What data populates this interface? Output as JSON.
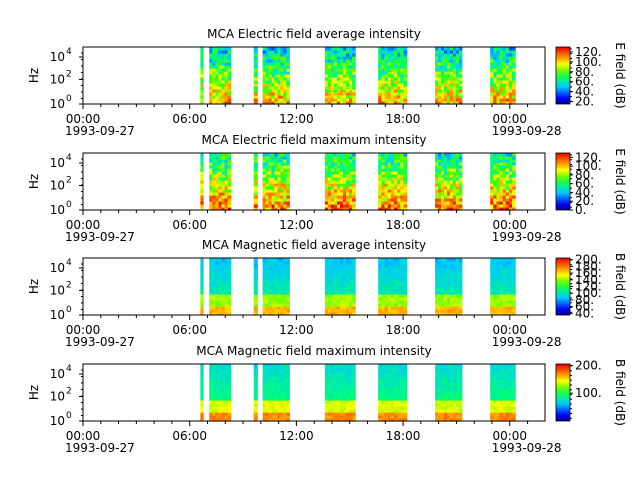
{
  "chart_data": {
    "type": "heatmap",
    "x_axis": {
      "start_date": "1993-09-27",
      "end_date": "1993-09-28",
      "tick_labels": [
        "00:00",
        "06:00",
        "12:00",
        "18:00",
        "00:00"
      ],
      "date_labels": [
        "1993-09-27",
        "",
        "",
        "",
        "1993-09-28"
      ]
    },
    "data_segments_hours": [
      [
        6.6,
        6.75
      ],
      [
        7.1,
        8.3
      ],
      [
        9.6,
        9.8
      ],
      [
        10.1,
        11.6
      ],
      [
        13.6,
        15.3
      ],
      [
        16.6,
        18.2
      ],
      [
        19.8,
        21.3
      ],
      [
        22.9,
        24.3
      ]
    ],
    "panels": [
      {
        "title": "MCA  Electric field average intensity",
        "ylabel": "Hz",
        "y_scale": "log",
        "y_ticks": [
          "10",
          "10",
          "10"
        ],
        "y_tick_exponents": [
          "0",
          "2",
          "4"
        ],
        "colorbar_label": "E field (dB)",
        "colorbar_range": [
          15,
          130
        ],
        "colorbar_ticks": [
          "20.",
          "40.",
          "60.",
          "80.",
          "100.",
          "120."
        ],
        "quantity": "E"
      },
      {
        "title": "MCA  Electric field maximum intensity",
        "ylabel": "Hz",
        "y_scale": "log",
        "y_ticks": [
          "10",
          "10",
          "10"
        ],
        "y_tick_exponents": [
          "0",
          "2",
          "4"
        ],
        "colorbar_label": "E field (dB)",
        "colorbar_range": [
          0,
          130
        ],
        "colorbar_ticks": [
          "0.",
          "20.",
          "40.",
          "60.",
          "80.",
          "100.",
          "120."
        ],
        "quantity": "E"
      },
      {
        "title": "MCA  Magnetic field average intensity",
        "ylabel": "Hz",
        "y_scale": "log",
        "y_ticks": [
          "10",
          "10",
          "10"
        ],
        "y_tick_exponents": [
          "0",
          "2",
          "4"
        ],
        "colorbar_label": "B field (dB)",
        "colorbar_range": [
          35,
          205
        ],
        "colorbar_ticks": [
          "40.",
          "60.",
          "80.",
          "100.",
          "120.",
          "140.",
          "160.",
          "180.",
          "200."
        ],
        "quantity": "B"
      },
      {
        "title": "MCA  Magnetic field maximum intensity",
        "ylabel": "Hz",
        "y_scale": "log",
        "y_ticks": [
          "10",
          "10",
          "10"
        ],
        "y_tick_exponents": [
          "0",
          "2",
          "4"
        ],
        "colorbar_label": "B field (dB)",
        "colorbar_range": [
          0,
          205
        ],
        "colorbar_ticks": [
          "100.",
          "200."
        ],
        "quantity": "B"
      }
    ]
  }
}
